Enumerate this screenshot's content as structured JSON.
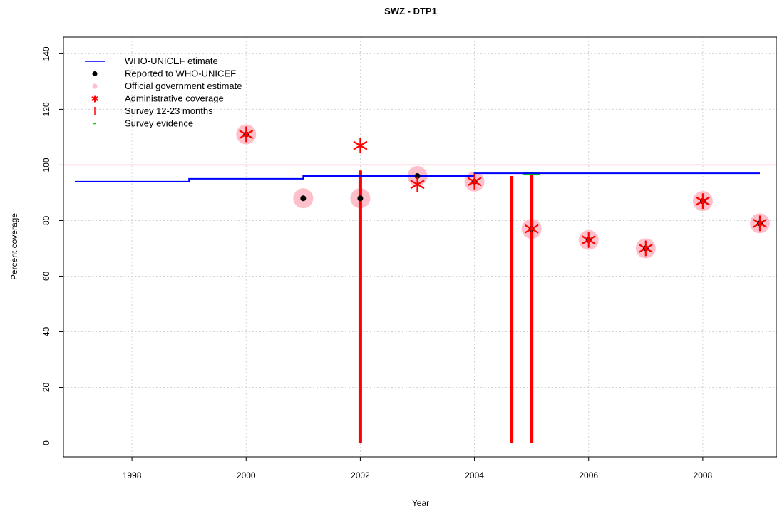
{
  "chart_data": {
    "type": "scatter",
    "title": "SWZ  -  DTP1",
    "xlabel": "Year",
    "ylabel": "Percent coverage",
    "xlim": [
      1996.8,
      2009.3
    ],
    "ylim": [
      -5,
      146
    ],
    "x_ticks": [
      1998,
      2000,
      2002,
      2004,
      2006,
      2008
    ],
    "y_ticks": [
      0,
      20,
      40,
      60,
      80,
      100,
      120,
      140
    ],
    "grid": true,
    "reference_line": 100,
    "legend": {
      "position": "top-left",
      "entries": [
        "WHO-UNICEF etimate",
        "Reported to WHO-UNICEF",
        "Official government estimate",
        "Administrative coverage",
        "Survey 12-23 months",
        "Survey evidence"
      ]
    },
    "colors": {
      "estimate": "#0000ff",
      "reported": "#000000",
      "official": "#ffc0cb",
      "administrative": "#ff0000",
      "survey": "#ff0000",
      "survey_evidence": "#00cc00",
      "reference": "#ffc0cb"
    },
    "series": [
      {
        "name": "WHO-UNICEF etimate",
        "type": "step-line",
        "x": [
          1997,
          1998,
          1999,
          2000,
          2001,
          2002,
          2003,
          2004,
          2005,
          2006,
          2007,
          2008,
          2009
        ],
        "y": [
          94,
          94,
          95,
          95,
          96,
          96,
          96,
          97,
          97,
          97,
          97,
          97,
          97
        ]
      },
      {
        "name": "Reported to WHO-UNICEF",
        "x": [
          2000,
          2001,
          2002,
          2003,
          2004,
          2005,
          2006,
          2007,
          2008,
          2009
        ],
        "y": [
          111,
          88,
          88,
          96,
          94,
          77,
          73,
          70,
          87,
          79
        ]
      },
      {
        "name": "Official government estimate",
        "x": [
          2000,
          2001,
          2002,
          2003,
          2004,
          2005,
          2006,
          2007,
          2008,
          2009
        ],
        "y": [
          111,
          88,
          88,
          96,
          94,
          77,
          73,
          70,
          87,
          79
        ]
      },
      {
        "name": "Administrative coverage",
        "x": [
          2000,
          2002,
          2003,
          2004,
          2005,
          2006,
          2007,
          2008,
          2009
        ],
        "y": [
          111,
          107,
          93,
          94,
          77,
          73,
          70,
          87,
          79
        ]
      },
      {
        "name": "Survey 12-23 months",
        "x": [
          2002,
          2004.65,
          2005
        ],
        "y": [
          98,
          96,
          97
        ]
      },
      {
        "name": "Survey evidence",
        "x": [
          2005
        ],
        "y": [
          97
        ]
      }
    ]
  }
}
